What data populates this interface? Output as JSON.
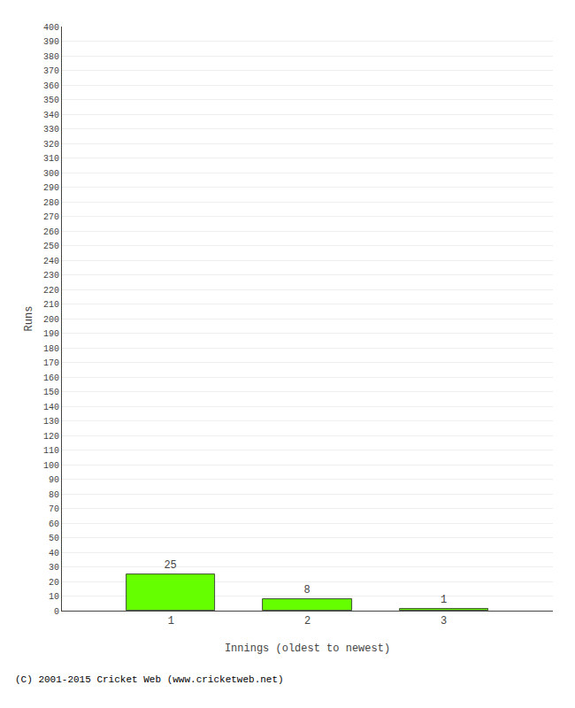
{
  "chart_data": {
    "type": "bar",
    "x": [
      1,
      2,
      3
    ],
    "values": [
      25,
      8,
      1
    ],
    "color": "#66ff00",
    "xlabel": "Innings (oldest to newest)",
    "ylabel": "Runs",
    "xlim": [
      0.2,
      3.8
    ],
    "xticks": [
      1,
      2,
      3
    ],
    "ylim": [
      0,
      400
    ],
    "yticks": [
      0,
      10,
      20,
      30,
      40,
      50,
      60,
      70,
      80,
      90,
      100,
      110,
      120,
      130,
      140,
      150,
      160,
      170,
      180,
      190,
      200,
      210,
      220,
      230,
      240,
      250,
      260,
      270,
      280,
      290,
      300,
      310,
      320,
      330,
      340,
      350,
      360,
      370,
      380,
      390,
      400
    ],
    "grid": true,
    "data_labels": true,
    "annotations": [
      "(C) 2001-2015 Cricket Web (www.cricketweb.net)"
    ]
  }
}
